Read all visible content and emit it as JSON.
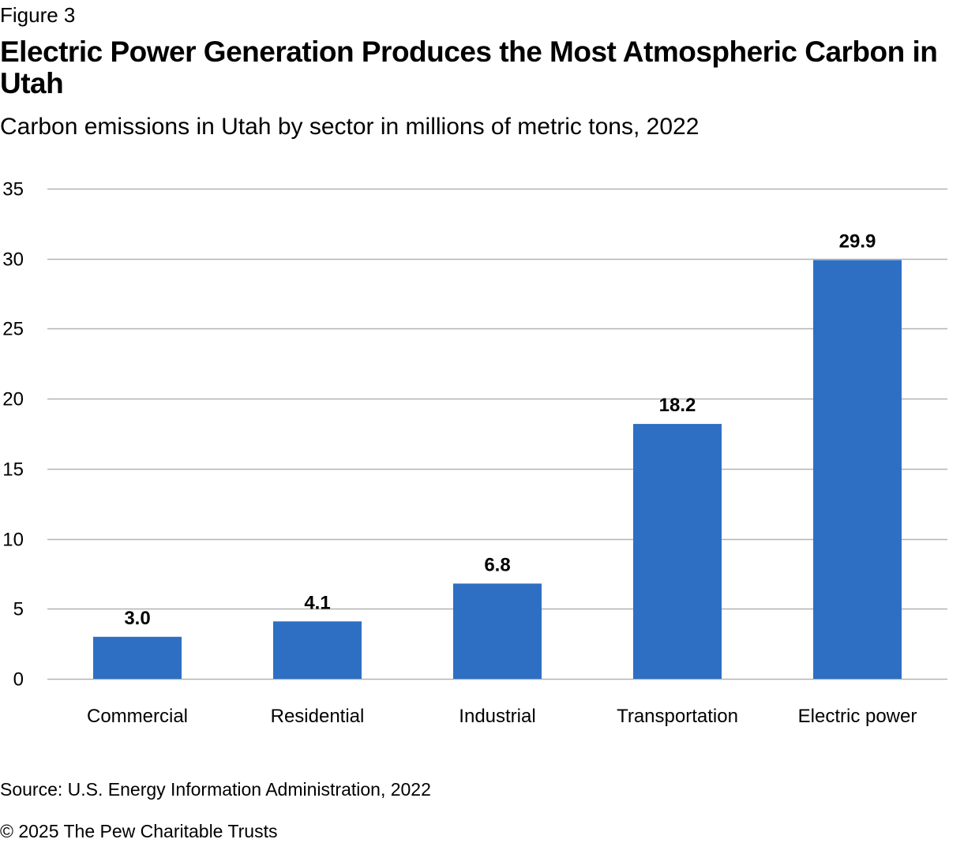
{
  "header": {
    "figure_label": "Figure 3",
    "title": "Electric Power Generation Produces the Most Atmospheric Carbon in Utah",
    "subtitle": "Carbon emissions in Utah by sector in millions of metric tons, 2022"
  },
  "footer": {
    "source": "Source: U.S. Energy Information Administration, 2022",
    "copyright": "© 2025 The Pew Charitable Trusts"
  },
  "chart_data": {
    "type": "bar",
    "title": "Electric Power Generation Produces the Most Atmospheric Carbon in Utah",
    "subtitle": "Carbon emissions in Utah by sector in millions of metric tons, 2022",
    "categories": [
      "Commercial",
      "Residential",
      "Industrial",
      "Transportation",
      "Electric power"
    ],
    "values": [
      3.0,
      4.1,
      6.8,
      18.2,
      29.9
    ],
    "data_labels": [
      "3.0",
      "4.1",
      "6.8",
      "18.2",
      "29.9"
    ],
    "xlabel": "",
    "ylabel": "",
    "ylim": [
      0,
      35
    ],
    "yticks": [
      0,
      5,
      10,
      15,
      20,
      25,
      30,
      35
    ],
    "grid": true,
    "legend": "none",
    "bar_color": "#2e6fc4",
    "grid_color": "#b3b3b3"
  }
}
